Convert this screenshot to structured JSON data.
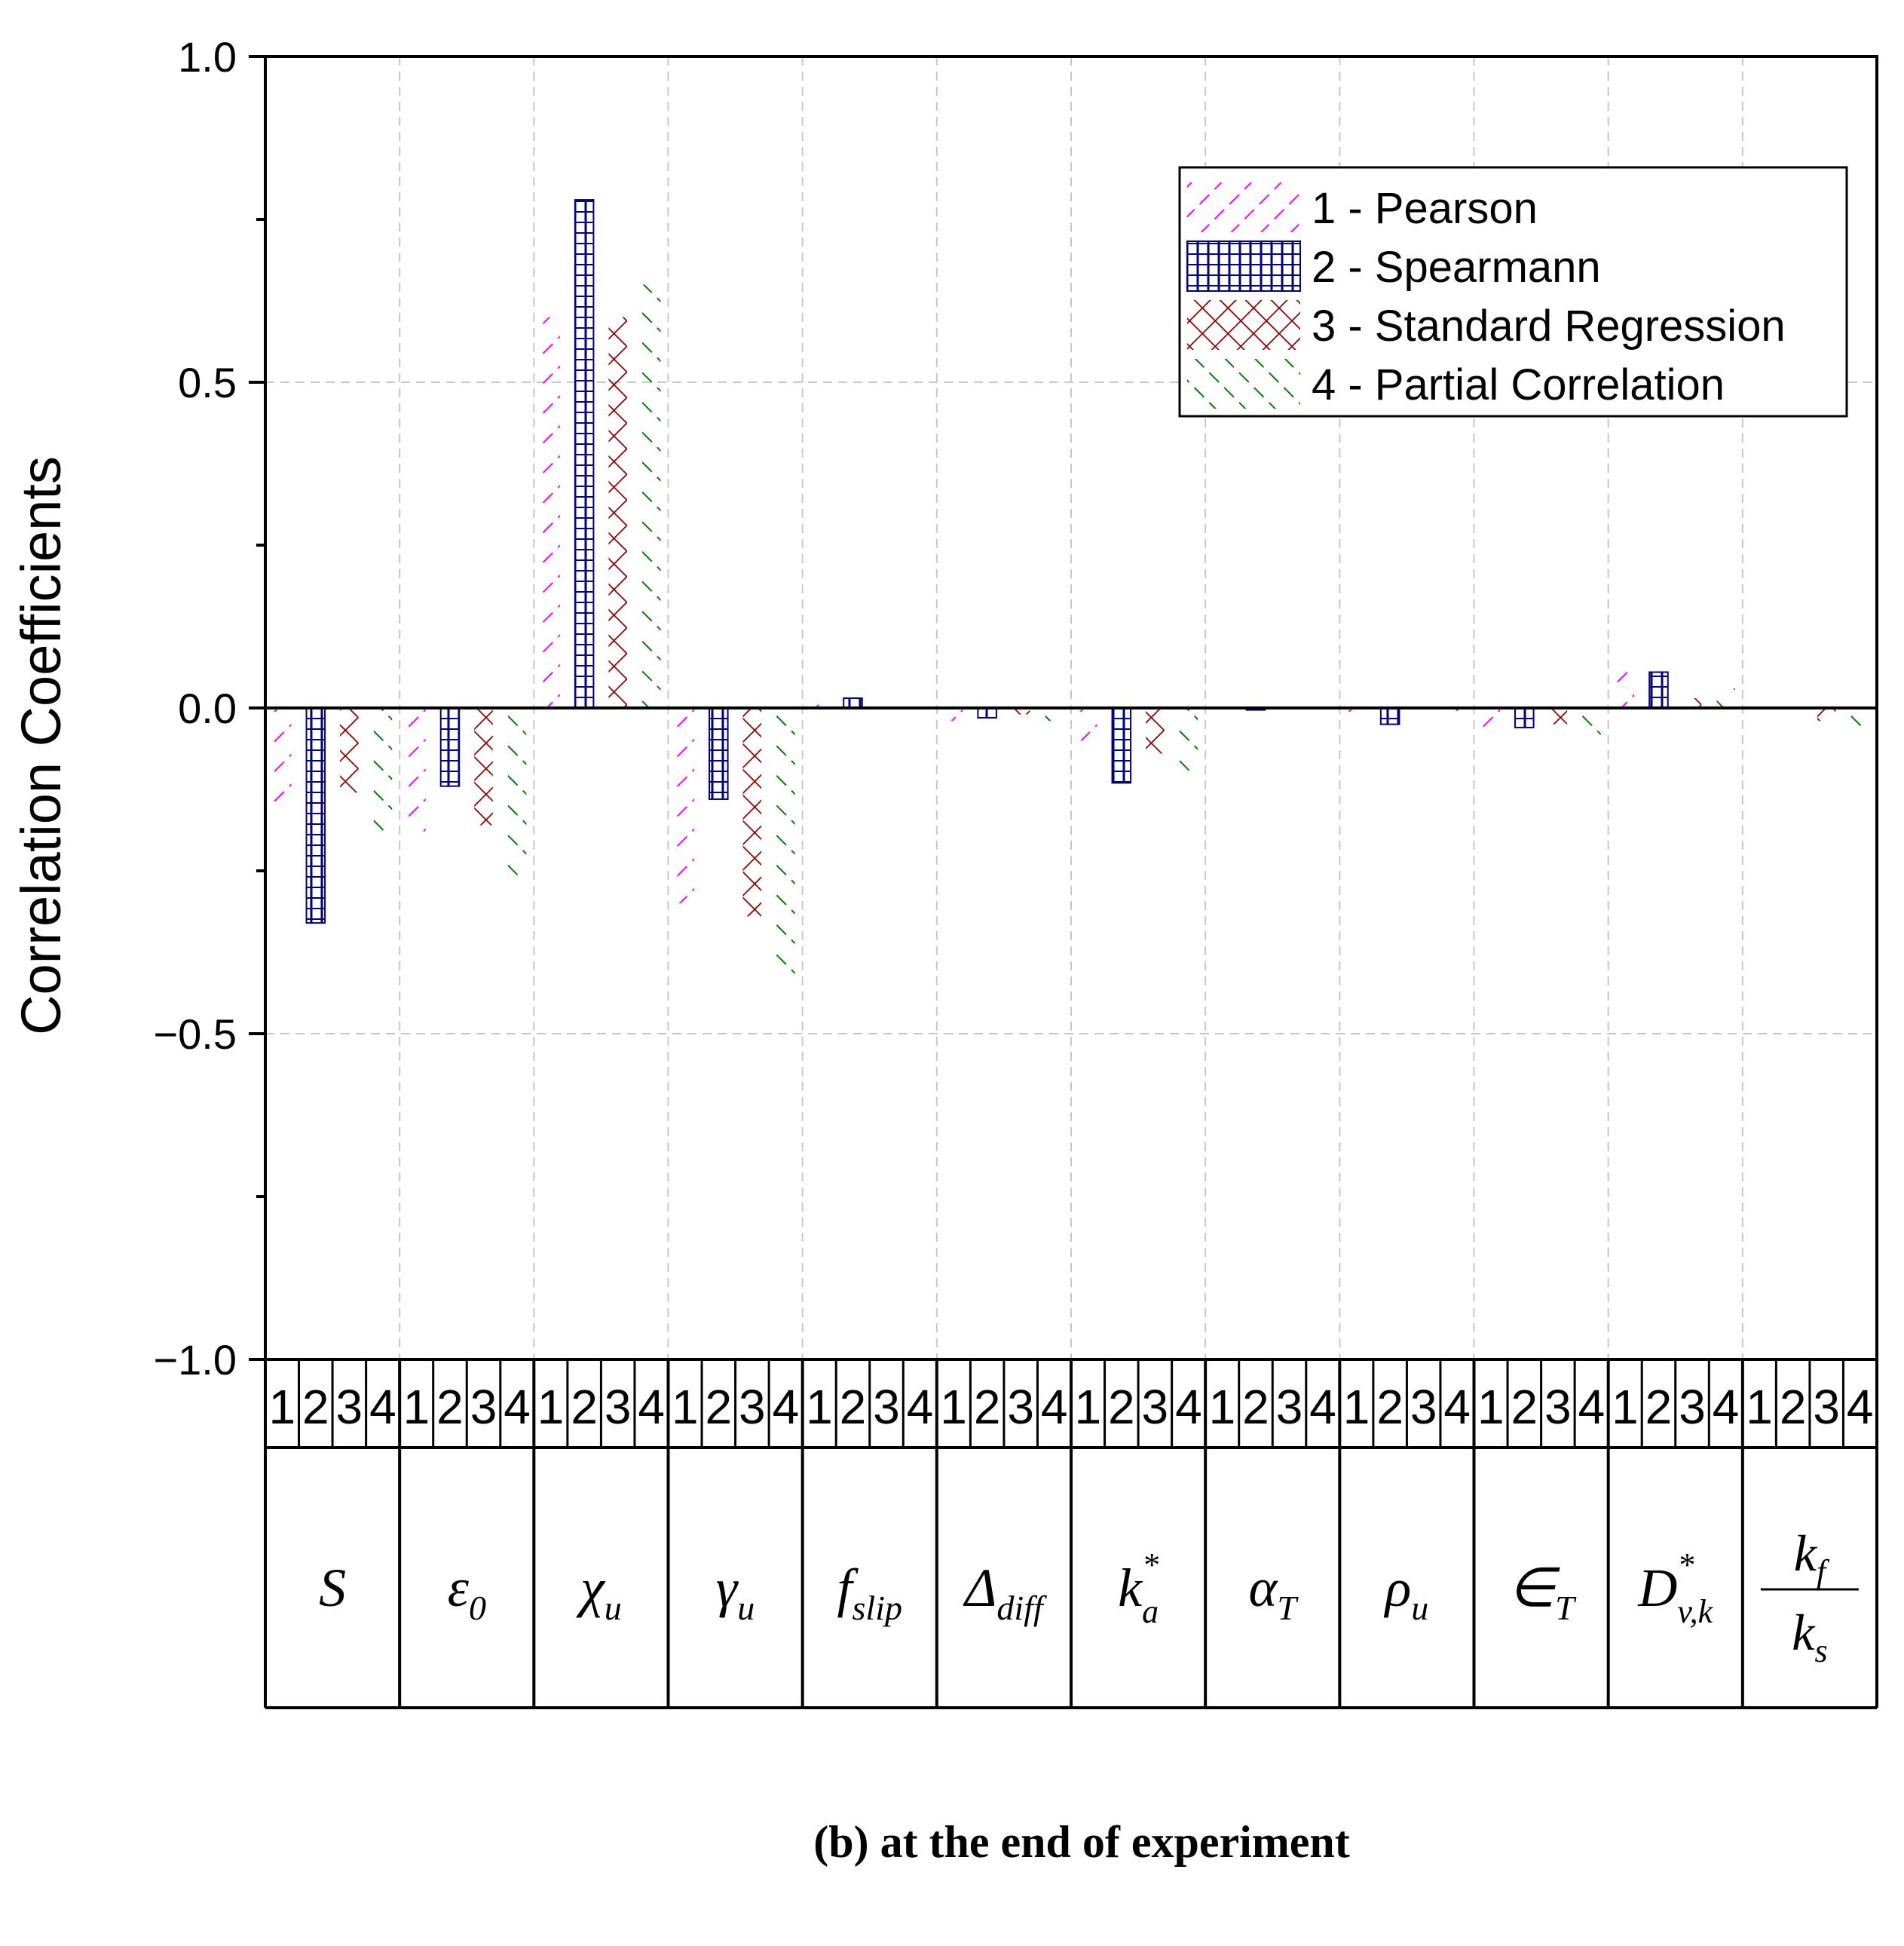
{
  "chart_data": {
    "type": "bar",
    "ylabel": "Correlation Coefficients",
    "ylim": [
      -1.0,
      1.0
    ],
    "yticks": [
      "1.0",
      "0.5",
      "0.0",
      "−0.5",
      "−1.0"
    ],
    "grid": true,
    "legend_position": "top-right",
    "group_numbers": [
      "1",
      "2",
      "3",
      "4"
    ],
    "categories": [
      {
        "base": "S",
        "sub": "",
        "sup": ""
      },
      {
        "base": "ε",
        "sub": "0",
        "sup": ""
      },
      {
        "base": "χ",
        "sub": "u",
        "sup": ""
      },
      {
        "base": "γ",
        "sub": "u",
        "sup": ""
      },
      {
        "base": "f",
        "sub": "slip",
        "sup": ""
      },
      {
        "base": "Δ",
        "sub": "diff",
        "sup": ""
      },
      {
        "base": "k",
        "sub": "a",
        "sup": "*"
      },
      {
        "base": "α",
        "sub": "T",
        "sup": ""
      },
      {
        "base": "ρ",
        "sub": "u",
        "sup": ""
      },
      {
        "base": "∈",
        "sub": "T",
        "sup": ""
      },
      {
        "base": "D",
        "sub": "v,k",
        "sup": "*"
      },
      {
        "frac": true,
        "num_base": "k",
        "num_sub": "f",
        "den_base": "k",
        "den_sub": "s"
      }
    ],
    "series": [
      {
        "name": "1 - Pearson",
        "color": "#ff00ff",
        "pattern": "diag-right",
        "values": [
          -0.16,
          -0.19,
          0.6,
          -0.3,
          0.005,
          -0.02,
          -0.05,
          0.0,
          -0.015,
          -0.04,
          0.06,
          0.0
        ]
      },
      {
        "name": "2 - Spearmann",
        "color": "#000080",
        "pattern": "grid",
        "values": [
          -0.33,
          -0.12,
          0.78,
          -0.14,
          0.015,
          -0.015,
          -0.115,
          -0.003,
          -0.025,
          -0.03,
          0.055,
          0.0
        ]
      },
      {
        "name": "3 - Standard Regression",
        "color": "#8b0000",
        "pattern": "cross",
        "values": [
          -0.13,
          -0.18,
          0.6,
          -0.32,
          0.0,
          -0.01,
          -0.07,
          0.0,
          0.0,
          -0.025,
          0.015,
          -0.02
        ]
      },
      {
        "name": "4 - Partial Correlation",
        "color": "#008000",
        "pattern": "diag-left",
        "values": [
          -0.19,
          -0.26,
          0.65,
          -0.42,
          0.0,
          -0.02,
          -0.1,
          0.0,
          -0.01,
          -0.045,
          0.03,
          -0.03
        ]
      }
    ]
  },
  "caption": {
    "open": "(",
    "letter": "b",
    "close": ")",
    "text": " at the end of experiment"
  }
}
